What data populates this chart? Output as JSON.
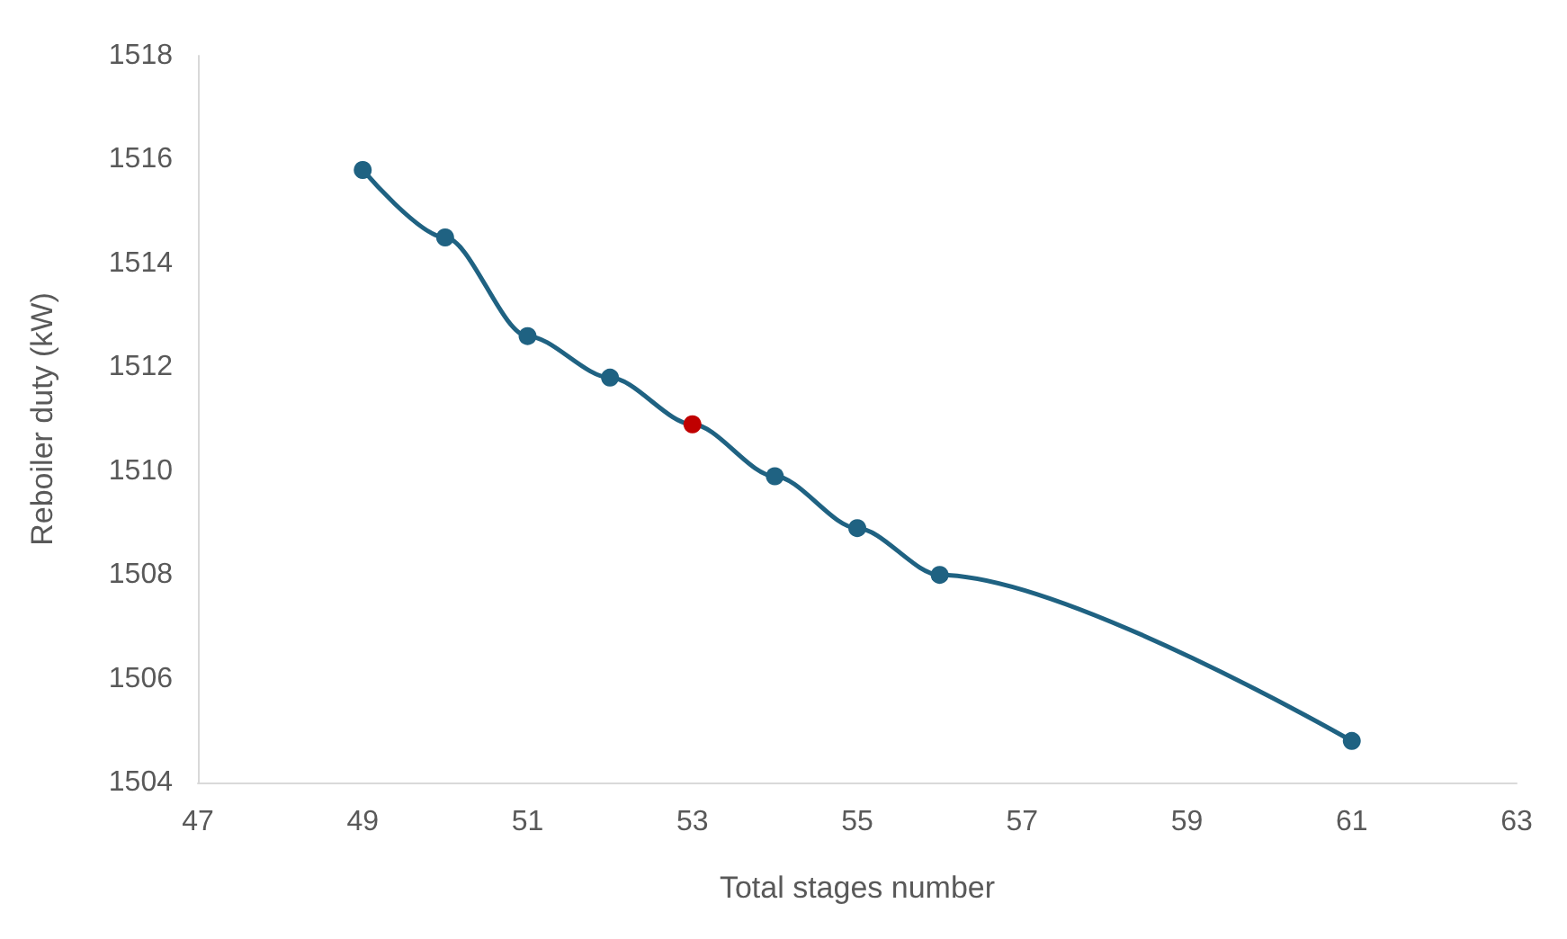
{
  "chart_data": {
    "type": "line",
    "xlabel": "Total stages number",
    "ylabel": "Reboiler duty (kW)",
    "x": [
      49,
      50,
      51,
      52,
      53,
      54,
      55,
      56,
      61
    ],
    "series": [
      {
        "color": "#1f6282",
        "colors": [
          "#1f6282",
          "#1f6282",
          "#1f6282",
          "#1f6282",
          "#c00000",
          "#1f6282",
          "#1f6282",
          "#1f6282",
          "#1f6282"
        ],
        "values": [
          1515.8,
          1514.5,
          1512.6,
          1511.8,
          1510.9,
          1509.9,
          1508.9,
          1508.0,
          1504.8
        ]
      }
    ],
    "xlim": [
      47,
      63
    ],
    "xticks": [
      47,
      49,
      51,
      53,
      55,
      57,
      59,
      61,
      63
    ],
    "ylim": [
      1504,
      1518
    ],
    "yticks": [
      1504,
      1506,
      1508,
      1510,
      1512,
      1514,
      1516,
      1518
    ],
    "grid": false,
    "marker": "circle",
    "line_style": "solid"
  }
}
